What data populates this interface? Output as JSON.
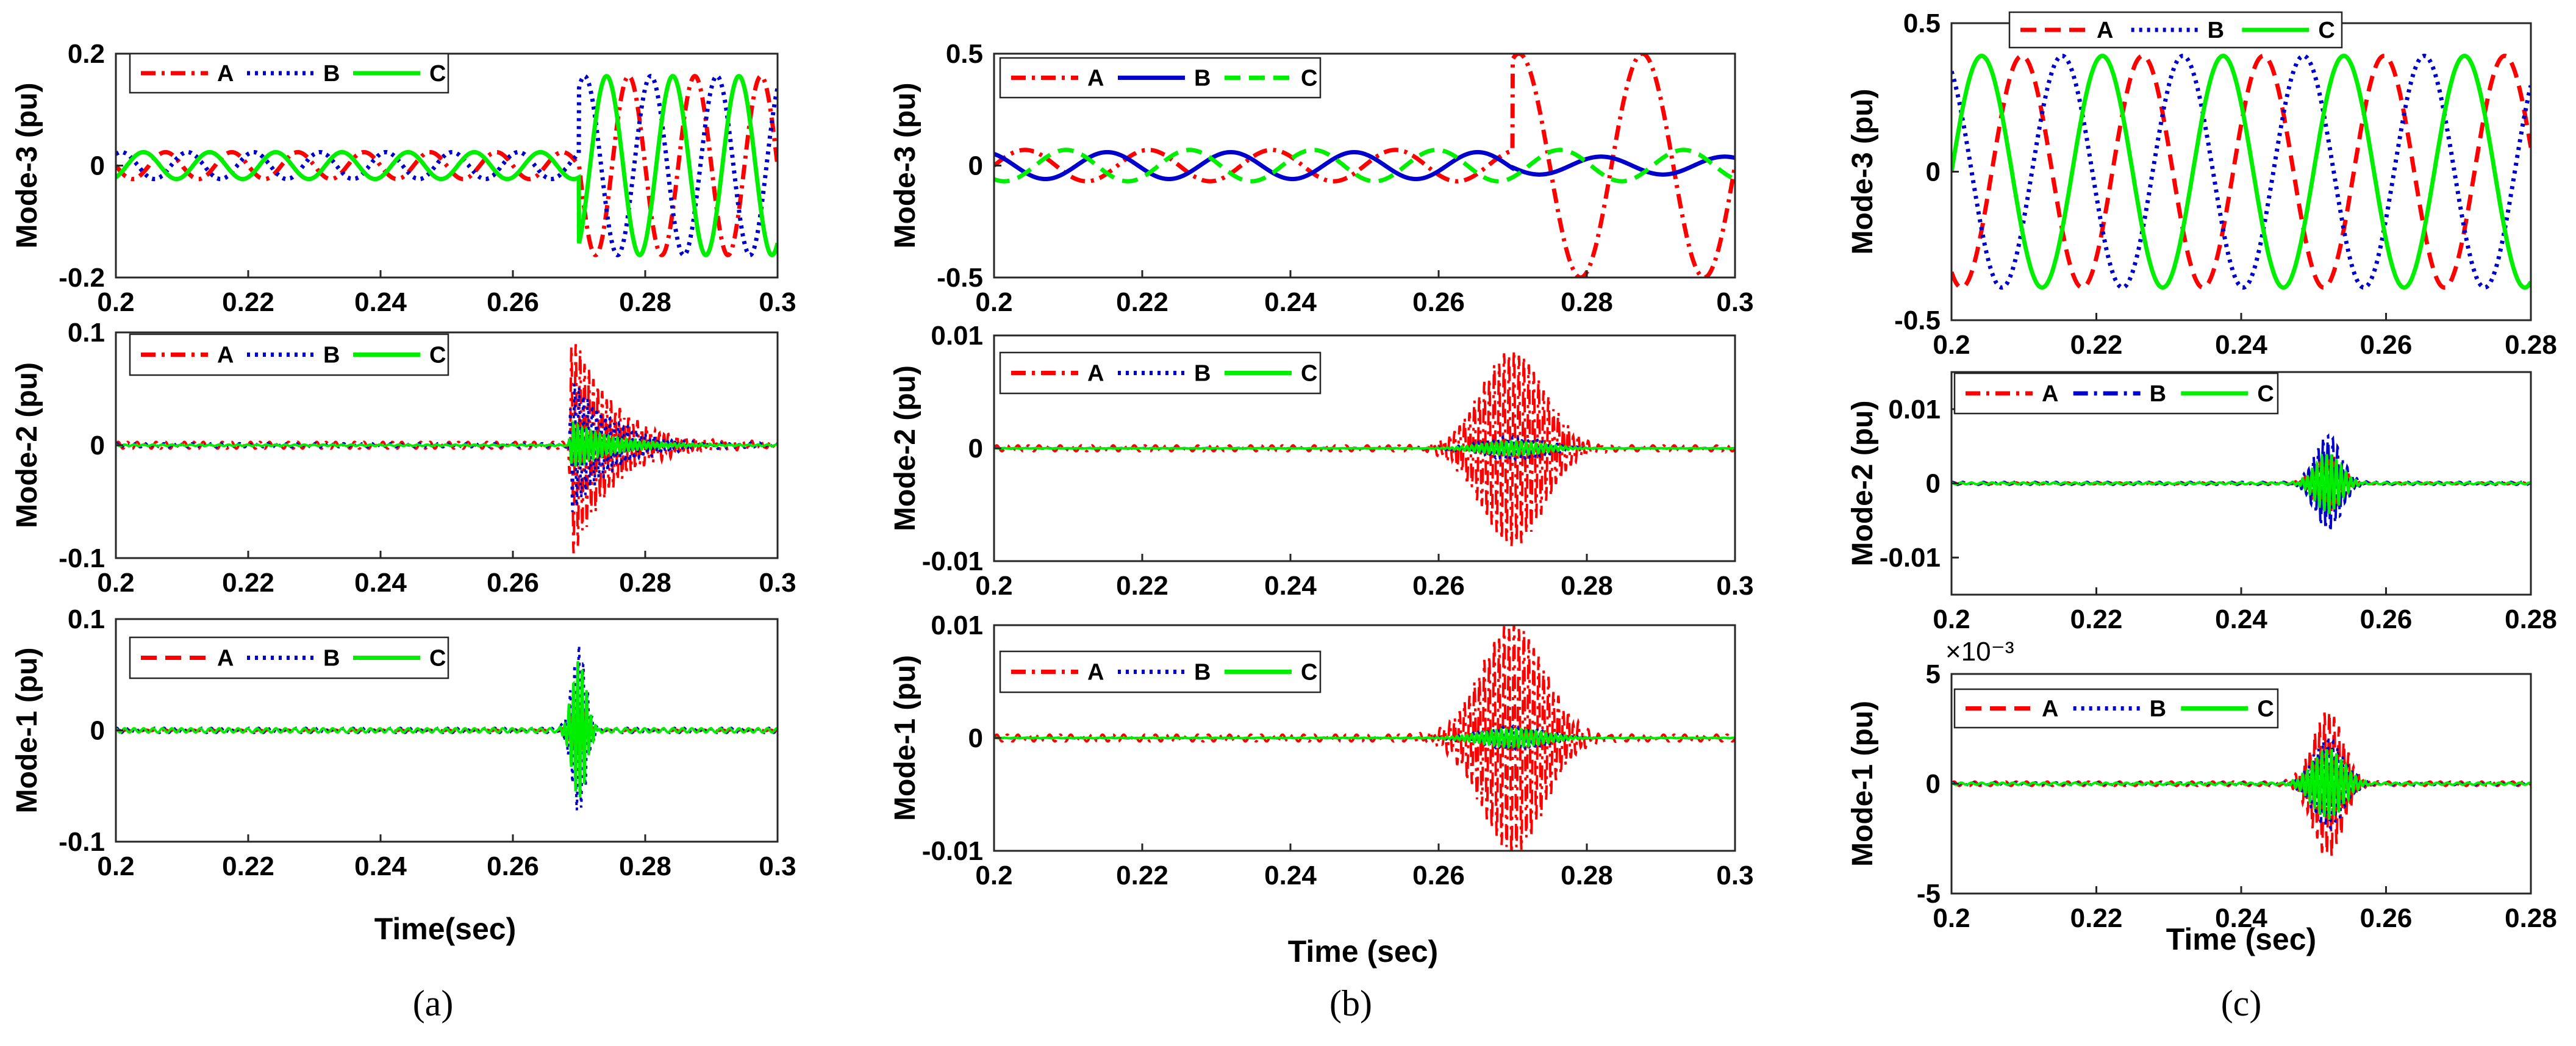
{
  "colors": {
    "A": "#ff0000",
    "B": "#0000cc",
    "C": "#00ee00"
  },
  "chart_data": [
    {
      "id": "a-mode3",
      "type": "line",
      "ylabel": "Mode-3 (pu)",
      "xlim": [
        0.2,
        0.3
      ],
      "ylim": [
        -0.2,
        0.2
      ],
      "xticks": [
        "0.2",
        "0.22",
        "0.24",
        "0.26",
        "0.28",
        "0.3"
      ],
      "yticks": [
        "0.2",
        "0",
        "-0.2"
      ],
      "fault_time": 0.27,
      "frequency_hz": 100,
      "series": [
        {
          "name": "A",
          "style": "dashdot",
          "amplitude_pre": 0.024,
          "amplitude_post": 0.16,
          "phase_deg": 180
        },
        {
          "name": "B",
          "style": "dotted",
          "amplitude_pre": 0.024,
          "amplitude_post": 0.16,
          "phase_deg": 60
        },
        {
          "name": "C",
          "style": "solid",
          "amplitude_pre": 0.024,
          "amplitude_post": 0.16,
          "phase_deg": -60
        }
      ]
    },
    {
      "id": "a-mode2",
      "type": "line",
      "ylabel": "Mode-2 (pu)",
      "xlim": [
        0.2,
        0.3
      ],
      "ylim": [
        -0.1,
        0.1
      ],
      "xticks": [
        "0.2",
        "0.22",
        "0.24",
        "0.26",
        "0.28",
        "0.3"
      ],
      "yticks": [
        "0.1",
        "0",
        "-0.1"
      ],
      "event_time": 0.269,
      "decay_tau": 0.006,
      "series": [
        {
          "name": "A",
          "style": "dashdot",
          "peak": 0.1
        },
        {
          "name": "B",
          "style": "dotted",
          "peak": 0.06
        },
        {
          "name": "C",
          "style": "solid",
          "peak": 0.02
        }
      ]
    },
    {
      "id": "a-mode1",
      "type": "line",
      "ylabel": "Mode-1 (pu)",
      "xlim": [
        0.2,
        0.3
      ],
      "ylim": [
        -0.1,
        0.1
      ],
      "xticks": [
        "0.2",
        "0.22",
        "0.24",
        "0.26",
        "0.28",
        "0.3"
      ],
      "yticks": [
        "0.1",
        "0",
        "-0.1"
      ],
      "event_time": 0.27,
      "spread_sec": 0.0015,
      "series": [
        {
          "name": "A",
          "style": "dashed",
          "peak": 0.02
        },
        {
          "name": "B",
          "style": "dotted",
          "peak": 0.075
        },
        {
          "name": "C",
          "style": "solid",
          "peak": 0.062
        }
      ]
    },
    {
      "id": "b-mode3",
      "type": "line",
      "ylabel": "Mode-3 (pu)",
      "xlim": [
        0.2,
        0.3
      ],
      "ylim": [
        -0.5,
        0.5
      ],
      "xticks": [
        "0.2",
        "0.22",
        "0.24",
        "0.26",
        "0.28",
        "0.3"
      ],
      "yticks": [
        "0.5",
        "0",
        "-0.5"
      ],
      "fault_time": 0.27,
      "frequency_hz": 60,
      "series": [
        {
          "name": "A",
          "style": "dashdot",
          "amplitude_pre": 0.07,
          "amplitude_post": 0.5,
          "phase_deg": 0
        },
        {
          "name": "B",
          "style": "solid",
          "amplitude_pre": 0.06,
          "amplitude_post": 0.04,
          "phase_deg": 120
        },
        {
          "name": "C",
          "style": "dashed",
          "amplitude_pre": 0.07,
          "amplitude_post": 0.07,
          "phase_deg": -120
        }
      ]
    },
    {
      "id": "b-mode2",
      "type": "line",
      "ylabel": "Mode-2 (pu)",
      "xlim": [
        0.2,
        0.3
      ],
      "ylim": [
        -0.01,
        0.01
      ],
      "xticks": [
        "0.2",
        "0.22",
        "0.24",
        "0.26",
        "0.28",
        "0.3"
      ],
      "yticks": [
        "0.01",
        "0",
        "-0.01"
      ],
      "event_time": 0.27,
      "spread_sec": 0.006,
      "series": [
        {
          "name": "A",
          "style": "dashdot",
          "peak": 0.0085
        },
        {
          "name": "B",
          "style": "dotted",
          "peak": 0.001
        },
        {
          "name": "C",
          "style": "solid",
          "peak": 0.0006
        }
      ]
    },
    {
      "id": "b-mode1",
      "type": "line",
      "ylabel": "Mode-1 (pu)",
      "xlim": [
        0.2,
        0.3
      ],
      "ylim": [
        -0.01,
        0.01
      ],
      "xticks": [
        "0.2",
        "0.22",
        "0.24",
        "0.26",
        "0.28",
        "0.3"
      ],
      "yticks": [
        "0.01",
        "0",
        "-0.01"
      ],
      "event_time": 0.27,
      "spread_sec": 0.006,
      "series": [
        {
          "name": "A",
          "style": "dashdot",
          "peak": 0.01
        },
        {
          "name": "B",
          "style": "dotted",
          "peak": 0.001
        },
        {
          "name": "C",
          "style": "solid",
          "peak": 0.0008
        }
      ]
    },
    {
      "id": "c-mode3",
      "type": "line",
      "ylabel": "Mode-3 (pu)",
      "xlim": [
        0.2,
        0.28
      ],
      "ylim": [
        -0.5,
        0.5
      ],
      "xticks": [
        "0.2",
        "0.22",
        "0.24",
        "0.26",
        "0.28"
      ],
      "yticks": [
        "0.5",
        "0",
        "-0.5"
      ],
      "frequency_hz": 60,
      "series": [
        {
          "name": "A",
          "style": "dashed",
          "amplitude": 0.39,
          "phase_deg": -120
        },
        {
          "name": "B",
          "style": "dotted",
          "amplitude": 0.39,
          "phase_deg": 120
        },
        {
          "name": "C",
          "style": "solid",
          "amplitude": 0.39,
          "phase_deg": 0
        }
      ]
    },
    {
      "id": "c-mode2",
      "type": "line",
      "ylabel": "Mode-2 (pu)",
      "xlim": [
        0.2,
        0.28
      ],
      "ylim": [
        -0.015,
        0.015
      ],
      "xticks": [
        "0.2",
        "0.22",
        "0.24",
        "0.26",
        "0.28"
      ],
      "yticks": [
        "0.01",
        "0",
        "-0.01"
      ],
      "event_time": 0.252,
      "spread_sec": 0.0025,
      "series": [
        {
          "name": "A",
          "style": "dashdot",
          "peak": 0.004
        },
        {
          "name": "B",
          "style": "dashdot",
          "peak": 0.0065
        },
        {
          "name": "C",
          "style": "solid",
          "peak": 0.004
        }
      ]
    },
    {
      "id": "c-mode1",
      "type": "line",
      "ylabel": "Mode-1 (pu)",
      "xlim": [
        0.2,
        0.28
      ],
      "ylim": [
        -5,
        5
      ],
      "y_exponent": "×10⁻³",
      "xticks": [
        "0.2",
        "0.22",
        "0.24",
        "0.26",
        "0.28"
      ],
      "yticks": [
        "5",
        "0",
        "-5"
      ],
      "event_time": 0.252,
      "spread_sec": 0.003,
      "series": [
        {
          "name": "A",
          "style": "dashed",
          "peak": 3.3
        },
        {
          "name": "B",
          "style": "dotted",
          "peak": 2.0
        },
        {
          "name": "C",
          "style": "solid",
          "peak": 1.6
        }
      ]
    }
  ],
  "columns": [
    {
      "xlabel": "Time(sec)",
      "caption": "(a)"
    },
    {
      "xlabel": "Time (sec)",
      "caption": "(b)"
    },
    {
      "xlabel": "Time (sec)",
      "caption": "(c)"
    }
  ]
}
